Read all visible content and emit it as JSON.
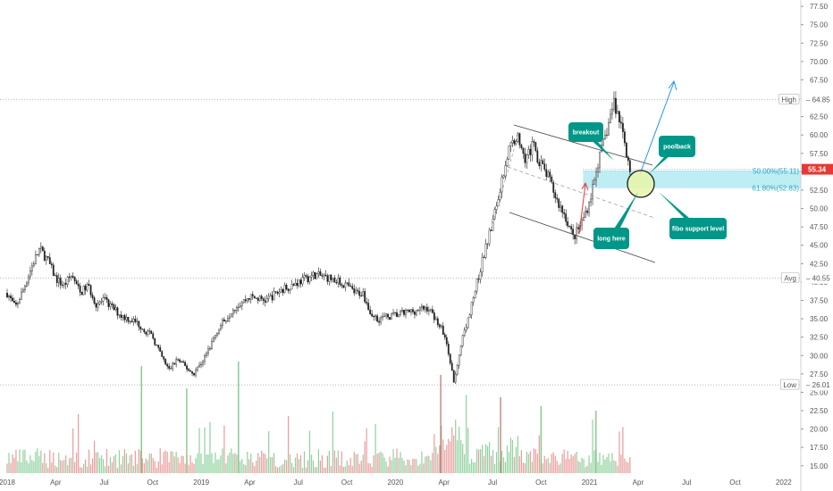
{
  "chart_data": {
    "type": "candlestick",
    "price_axis": {
      "range": [
        14,
        78
      ],
      "ticks": [
        "77.50",
        "75.00",
        "72.50",
        "70.00",
        "67.50",
        "65.00",
        "62.50",
        "60.00",
        "57.50",
        "55.00",
        "52.50",
        "50.00",
        "47.50",
        "45.00",
        "42.50",
        "40.00",
        "37.50",
        "35.00",
        "32.50",
        "30.00",
        "27.50",
        "25.00",
        "22.50",
        "20.00",
        "17.50",
        "15.00"
      ]
    },
    "time_axis": {
      "ticks": [
        "2018",
        "Apr",
        "Jul",
        "Oct",
        "2019",
        "Apr",
        "Jul",
        "Oct",
        "2020",
        "Apr",
        "Jul",
        "Oct",
        "2021",
        "Apr",
        "Jul",
        "Oct",
        "2022"
      ],
      "tick_positions_month_index": [
        0,
        3,
        6,
        9,
        12,
        15,
        18,
        21,
        24,
        27,
        30,
        33,
        36,
        39,
        42,
        45,
        48
      ]
    },
    "price_path": [
      [
        0,
        38.5
      ],
      [
        0.5,
        36.5
      ],
      [
        1,
        39
      ],
      [
        1.5,
        42
      ],
      [
        2,
        44.5
      ],
      [
        2.5,
        43
      ],
      [
        3,
        40.5
      ],
      [
        3.5,
        39.5
      ],
      [
        4,
        41
      ],
      [
        4.5,
        38.5
      ],
      [
        5,
        39.5
      ],
      [
        5.5,
        37
      ],
      [
        6,
        37.5
      ],
      [
        7,
        35.5
      ],
      [
        8,
        34.5
      ],
      [
        9,
        32.5
      ],
      [
        9.5,
        30
      ],
      [
        10,
        28
      ],
      [
        10.5,
        29.5
      ],
      [
        11,
        28.5
      ],
      [
        11.5,
        27.5
      ],
      [
        12,
        29
      ],
      [
        12.5,
        31
      ],
      [
        13,
        33.5
      ],
      [
        14,
        36.5
      ],
      [
        15,
        38
      ],
      [
        16,
        37.5
      ],
      [
        17,
        39
      ],
      [
        18,
        40
      ],
      [
        19,
        41
      ],
      [
        20,
        40.5
      ],
      [
        21,
        39.5
      ],
      [
        21.5,
        38.5
      ],
      [
        22,
        38.5
      ],
      [
        22.5,
        35.5
      ],
      [
        23,
        35
      ],
      [
        24,
        35.5
      ],
      [
        25,
        36
      ],
      [
        26,
        36.5
      ],
      [
        26.5,
        35
      ],
      [
        27,
        33
      ],
      [
        27.3,
        30
      ],
      [
        27.6,
        26.5
      ],
      [
        28,
        31
      ],
      [
        28.5,
        35
      ],
      [
        29,
        39.5
      ],
      [
        29.5,
        44
      ],
      [
        30,
        48
      ],
      [
        30.5,
        53
      ],
      [
        31,
        58
      ],
      [
        31.5,
        60
      ],
      [
        32,
        57
      ],
      [
        32.5,
        58.5
      ],
      [
        33,
        56
      ],
      [
        33.5,
        54
      ],
      [
        34,
        51
      ],
      [
        34.5,
        49
      ],
      [
        35,
        46
      ],
      [
        35.5,
        48
      ],
      [
        36,
        51
      ],
      [
        36.5,
        56
      ],
      [
        37,
        60
      ],
      [
        37.5,
        64.5
      ],
      [
        38,
        61
      ],
      [
        38.5,
        55.34
      ]
    ],
    "volume_axis_note": "volume bars plotted on the lower band of the price axis",
    "stats": {
      "high": {
        "label": "High",
        "value": "64.85",
        "level": 64.85
      },
      "avg": {
        "label": "Avg",
        "value": "40.55",
        "level": 40.55
      },
      "low": {
        "label": "Low",
        "value": "26.01",
        "level": 26.01
      },
      "last": {
        "value": "55.34",
        "level": 55.34
      }
    },
    "fib_levels": [
      {
        "label": "50.00%(55.11)",
        "level": 55.11
      },
      {
        "label": "61.80%(52.83)",
        "level": 52.83
      }
    ],
    "annotations": [
      "breakout",
      "poolback",
      "long here",
      "fibo support level"
    ],
    "colors": {
      "up": "#26a69a",
      "down": "#ef5350",
      "volume_up": "#8fd19e",
      "volume_down": "#e99c9c",
      "fib_zone": "#b2ebf2",
      "annotation_bg": "#009688",
      "last_price": "#e53935",
      "arrow_up": "#2196f3",
      "arrow_red": "#e53935"
    }
  }
}
